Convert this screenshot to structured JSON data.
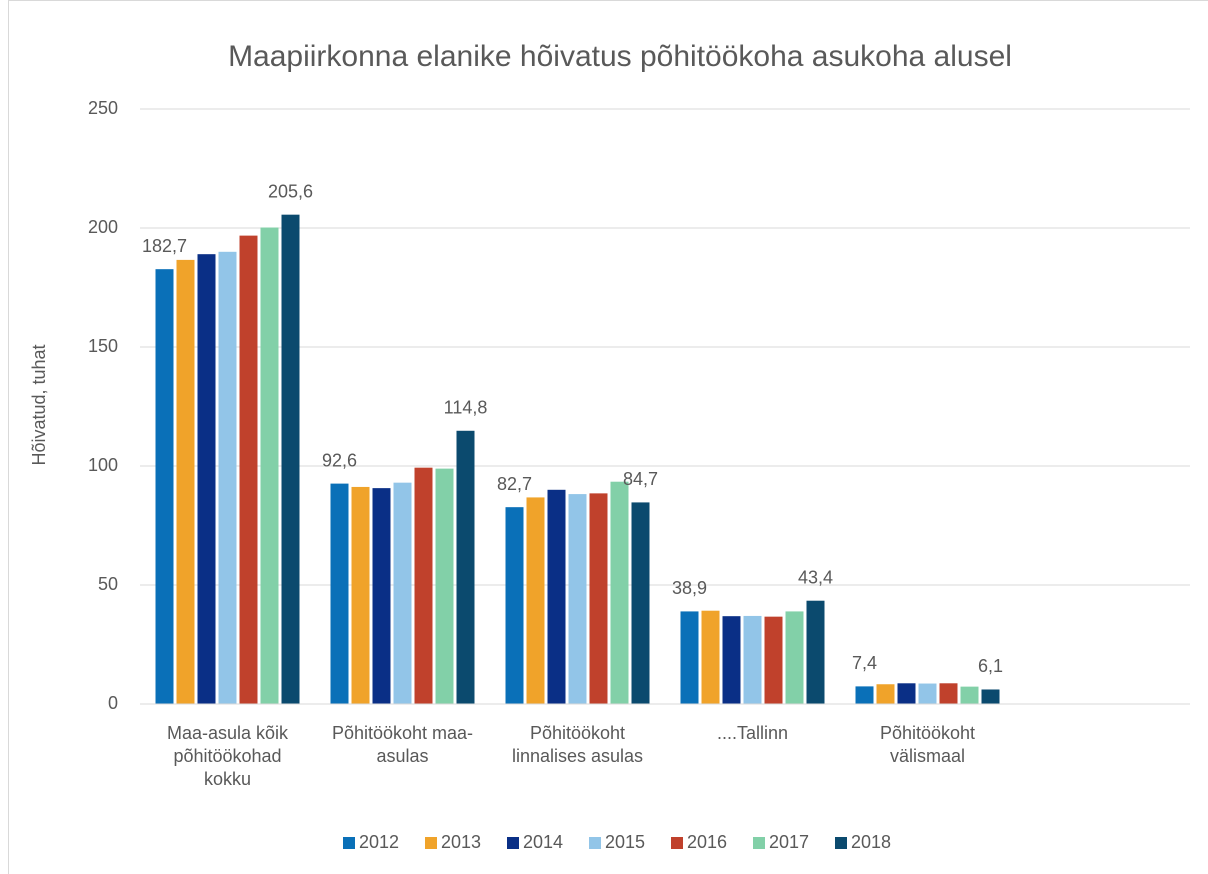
{
  "chart_data": {
    "type": "bar",
    "title": "Maapiirkonna elanike hõivatus põhitöökoha asukoha alusel",
    "y_label": "Hõivatud, tuhat",
    "categories": [
      "Maa-asula kõik põhitöökohad kokku",
      "Põhitöökoht  maa-asulas",
      "Põhitöökoht linnalises asulas",
      "....Tallinn",
      "Põhitöökoht välismaal",
      null
    ],
    "series": [
      {
        "name": "2012",
        "color": "#0a70b8",
        "values": [
          182.7,
          92.6,
          82.7,
          38.9,
          7.4,
          null
        ],
        "value_labels": [
          "182,7",
          "92,6",
          "82,7",
          "38,9",
          "7,4",
          null
        ]
      },
      {
        "name": "2013",
        "color": "#f0a32a",
        "values": [
          186.6,
          91.2,
          86.8,
          39.2,
          8.3,
          null
        ]
      },
      {
        "name": "2014",
        "color": "#0a2f86",
        "values": [
          189,
          90.7,
          90,
          36.9,
          8.7,
          null
        ]
      },
      {
        "name": "2015",
        "color": "#92c5e8",
        "values": [
          190,
          93,
          88.2,
          37,
          8.6,
          null
        ]
      },
      {
        "name": "2016",
        "color": "#c0412c",
        "values": [
          196.8,
          99.3,
          88.5,
          36.7,
          8.7,
          null
        ]
      },
      {
        "name": "2017",
        "color": "#82d0a8",
        "values": [
          200.2,
          98.9,
          93.4,
          38.9,
          7.3,
          null
        ]
      },
      {
        "name": "2018",
        "color": "#0b4a6e",
        "values": [
          205.6,
          114.8,
          84.7,
          43.4,
          6.1,
          null
        ],
        "value_labels": [
          "205,6",
          "114,8",
          "84,7",
          "43,4",
          "6,1",
          null
        ]
      }
    ],
    "ylim": [
      0,
      250
    ],
    "yticks": [
      0,
      50,
      100,
      150,
      200,
      250
    ],
    "grid": true,
    "legend": "bottom"
  }
}
